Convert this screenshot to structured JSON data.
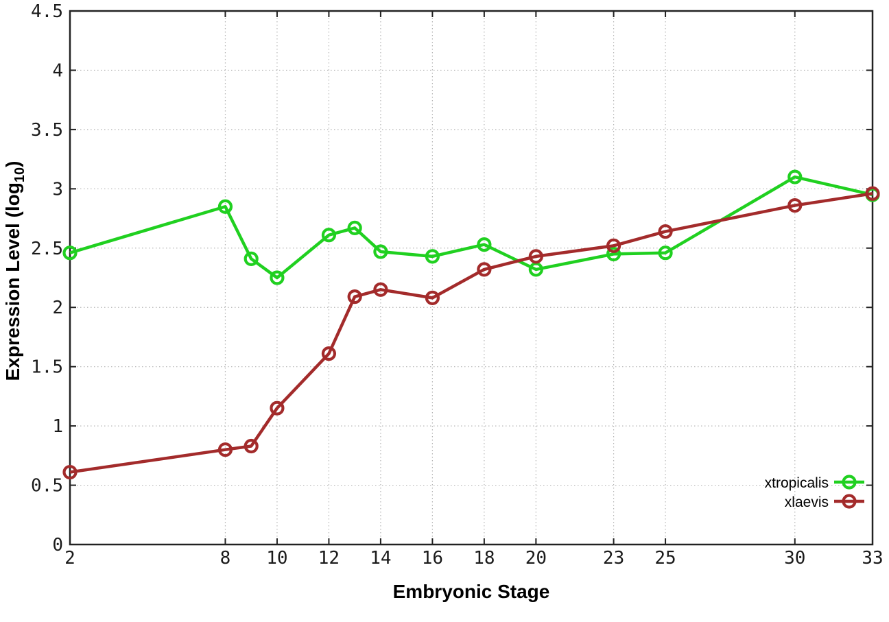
{
  "figure": {
    "background": "#ffffff",
    "ylabel_prefix": "Expression Level (log",
    "ylabel_sub": "10",
    "ylabel_suffix": ")"
  },
  "chart_data": {
    "type": "line",
    "title": "",
    "xlabel": "Embryonic Stage",
    "ylabel": "Expression Level (log10)",
    "xlim": [
      2,
      33
    ],
    "ylim": [
      0,
      4.5
    ],
    "xticks": [
      2,
      8,
      10,
      12,
      14,
      16,
      18,
      20,
      23,
      25,
      30,
      33
    ],
    "yticks": [
      0,
      0.5,
      1,
      1.5,
      2,
      2.5,
      3,
      3.5,
      4,
      4.5
    ],
    "grid": true,
    "legend_position": "bottom-right-inside",
    "axis_color": "#222222",
    "grid_color": "#b5b5b5",
    "x": [
      2,
      8,
      9,
      10,
      12,
      13,
      14,
      16,
      18,
      20,
      23,
      25,
      30,
      33
    ],
    "series": [
      {
        "name": "xtropicalis",
        "color": "#20d020",
        "marker": "open-circle",
        "values": [
          2.46,
          2.85,
          2.41,
          2.25,
          2.61,
          2.67,
          2.47,
          2.43,
          2.53,
          2.32,
          2.45,
          2.46,
          3.1,
          2.95
        ]
      },
      {
        "name": "xlaevis",
        "color": "#a32b2b",
        "marker": "open-circle",
        "values": [
          0.61,
          0.8,
          0.83,
          1.15,
          1.61,
          2.09,
          2.15,
          2.08,
          2.32,
          2.43,
          2.52,
          2.64,
          2.86,
          2.96
        ]
      }
    ]
  }
}
